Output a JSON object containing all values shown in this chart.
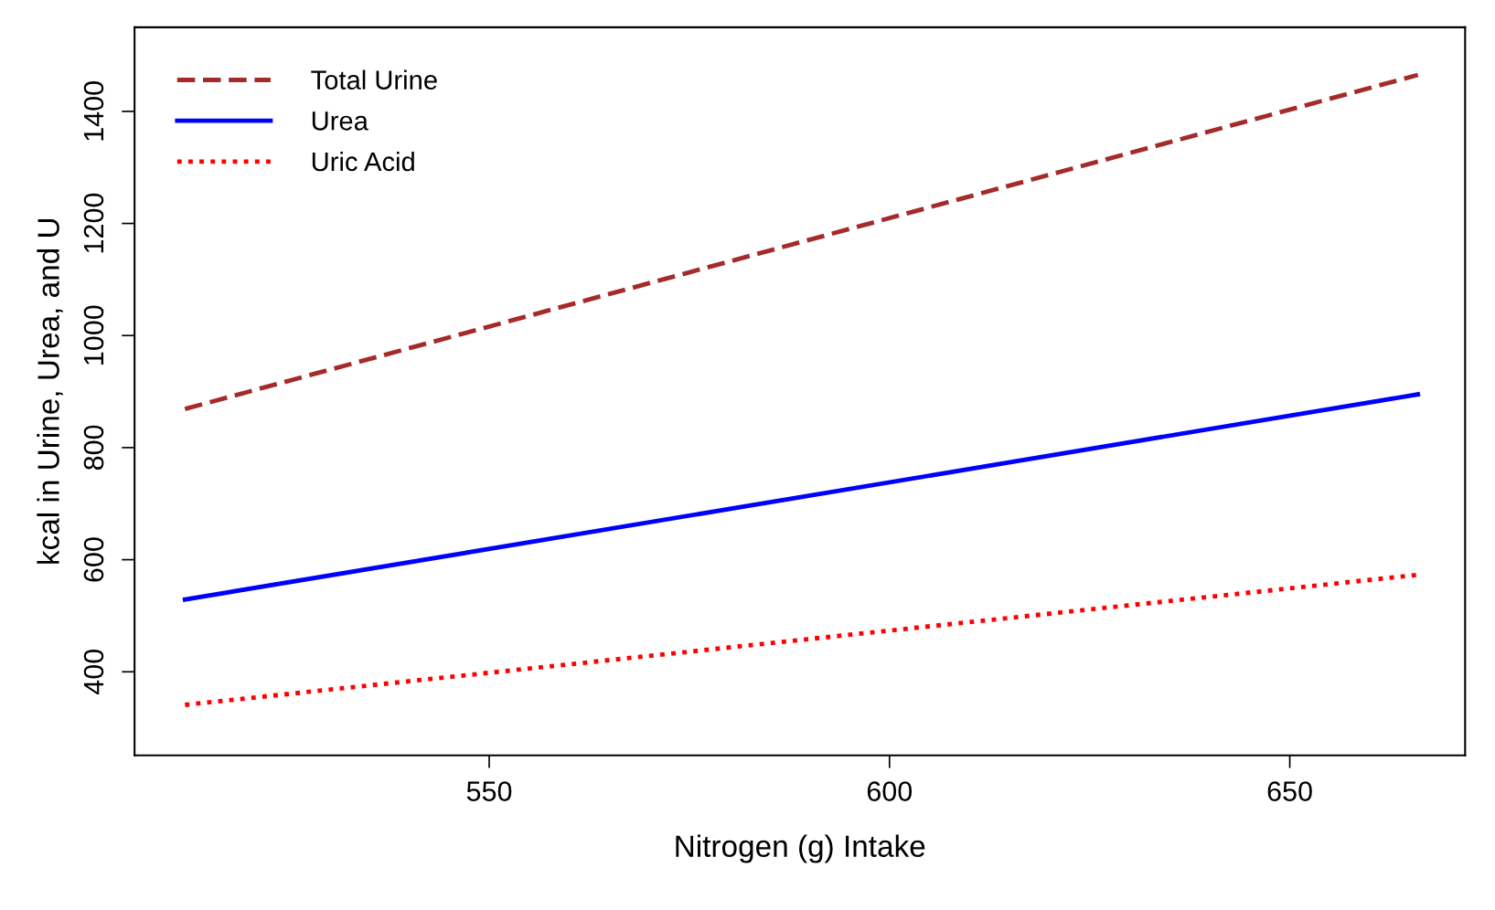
{
  "chart_data": {
    "type": "line",
    "xlabel": "Nitrogen (g) Intake",
    "ylabel": "kcal in Urine, Urea, and U",
    "xlim": [
      505.7,
      671.9
    ],
    "xticks": [
      550,
      600,
      650
    ],
    "ylim": [
      251,
      1550
    ],
    "yticks": [
      400,
      600,
      800,
      1000,
      1200,
      1400
    ],
    "grid": false,
    "legend": "top left",
    "x": [
      512,
      666
    ],
    "series": [
      {
        "name": "Total Urine",
        "color": "#a52a2a",
        "line_style": "dashed",
        "values": [
          869,
          1465
        ]
      },
      {
        "name": "Urea",
        "color": "#0000ff",
        "line_style": "solid",
        "values": [
          529,
          895
        ]
      },
      {
        "name": "Uric Acid",
        "color": "#ff0000",
        "line_style": "dotted",
        "values": [
          341,
          573
        ]
      }
    ]
  }
}
